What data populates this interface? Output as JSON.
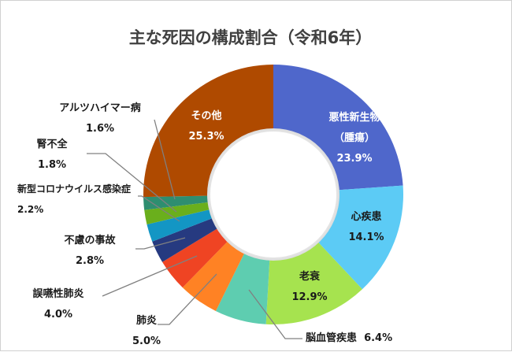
{
  "chart_data": {
    "type": "pie",
    "donut": true,
    "title": "主な死因の構成割合（令和6年）",
    "unit": "%",
    "start": "top",
    "direction": "clockwise",
    "slices": [
      {
        "label": "悪性新生物",
        "sublabel": "（腫瘍）",
        "value": 23.9,
        "value_text": "23.9%",
        "color": "#4F67CB"
      },
      {
        "label": "心疾患",
        "value": 14.1,
        "value_text": "14.1%",
        "color": "#5CCBF5"
      },
      {
        "label": "老衰",
        "value": 12.9,
        "value_text": "12.9%",
        "color": "#A6E34F"
      },
      {
        "label": "脳血管疾患",
        "value": 6.4,
        "value_text": "6.4%",
        "color": "#5ECDB0"
      },
      {
        "label": "肺炎",
        "value": 5.0,
        "value_text": "5.0%",
        "color": "#FF8224"
      },
      {
        "label": "誤嚥性肺炎",
        "value": 4.0,
        "value_text": "4.0%",
        "color": "#EF4423"
      },
      {
        "label": "不慮の事故",
        "value": 2.8,
        "value_text": "2.8%",
        "color": "#263A80"
      },
      {
        "label": "新型コロナウイルス感染症",
        "value": 2.2,
        "value_text": "2.2%",
        "color": "#1396C4"
      },
      {
        "label": "腎不全",
        "value": 1.8,
        "value_text": "1.8%",
        "color": "#6AAF1C"
      },
      {
        "label": "アルツハイマー病",
        "value": 1.6,
        "value_text": "1.6%",
        "color": "#2E8E70"
      },
      {
        "label": "その他",
        "value": 25.3,
        "value_text": "25.3%",
        "color": "#AF4A00"
      }
    ]
  }
}
